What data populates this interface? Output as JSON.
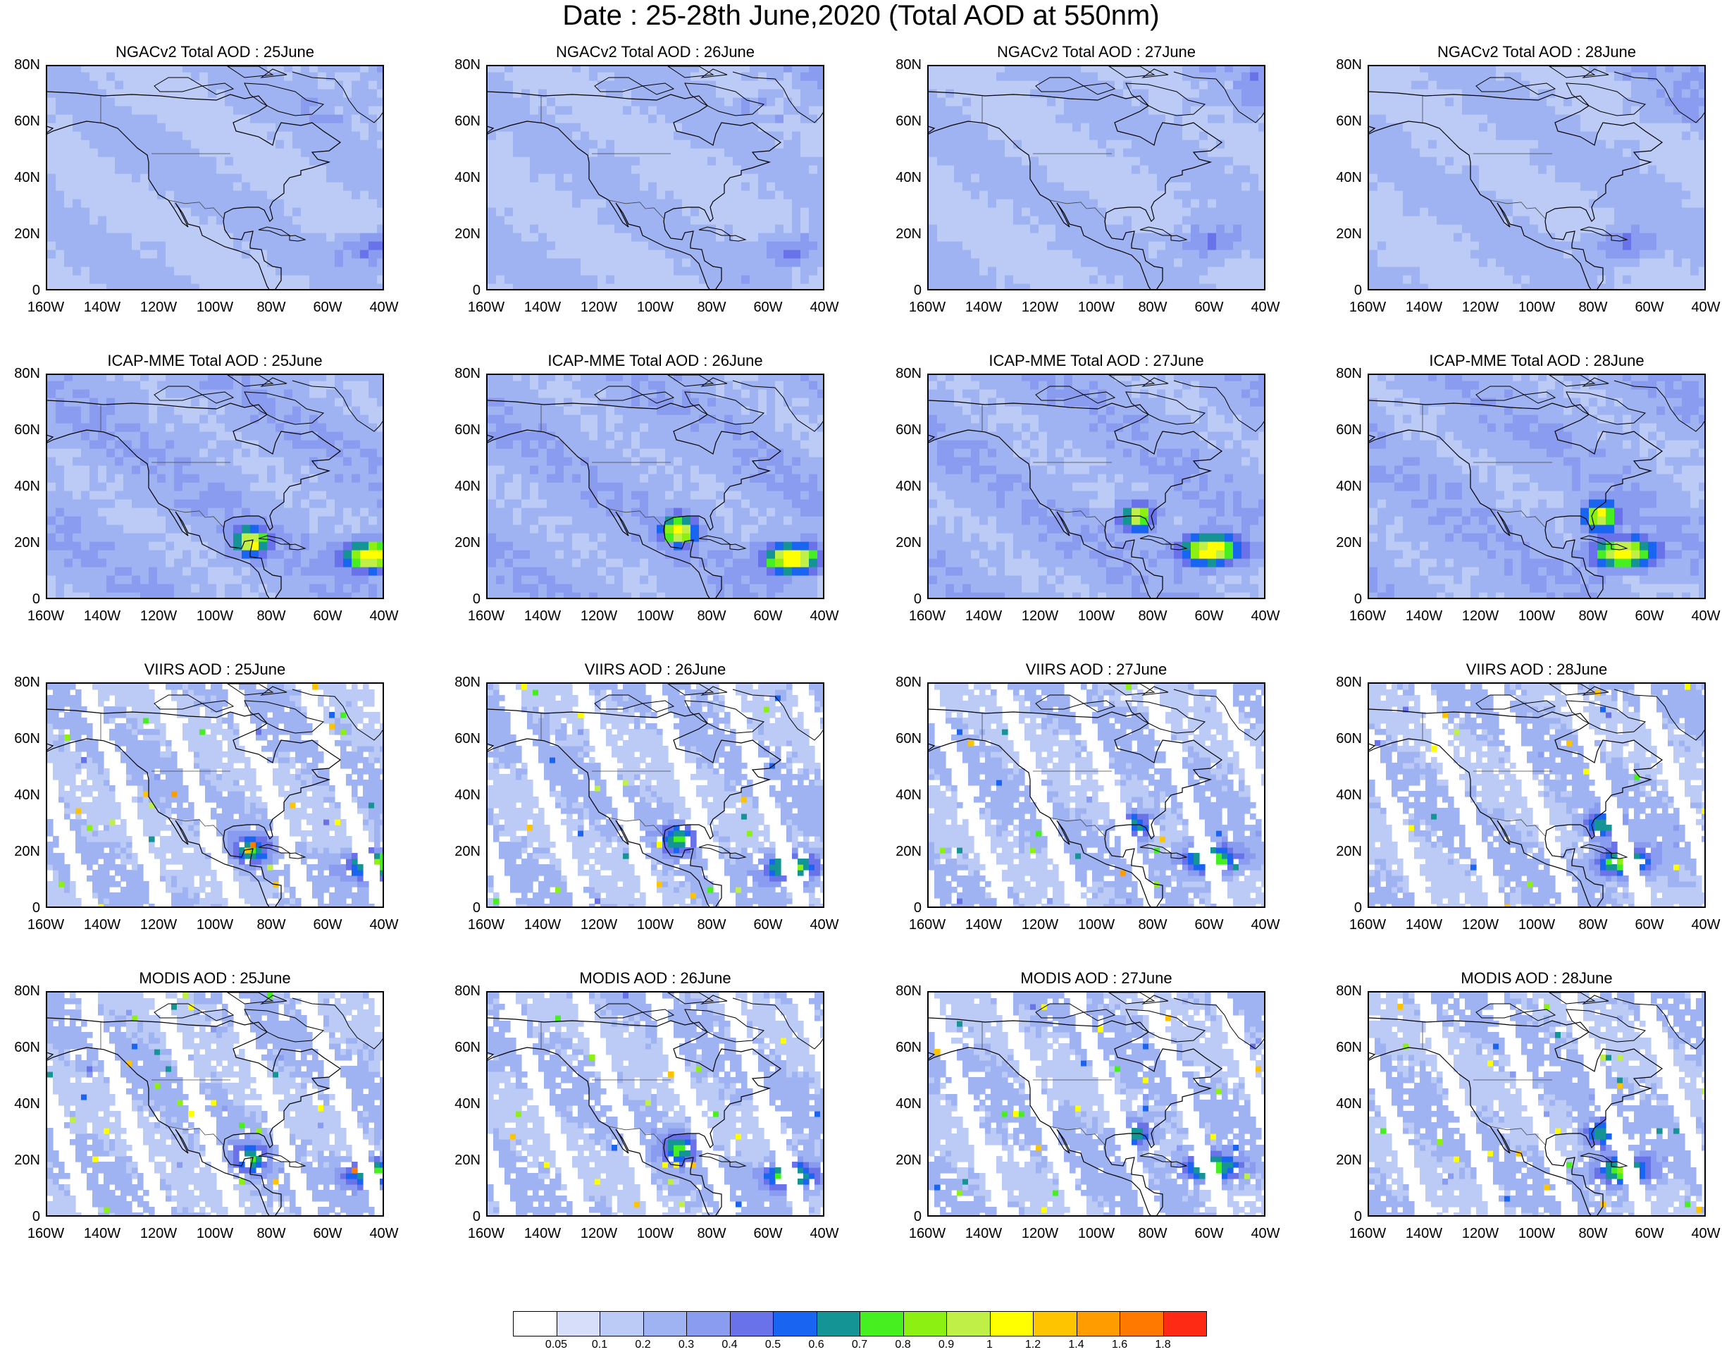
{
  "title": "Date : 25-28th June,2020 (Total AOD at 550nm)",
  "axes": {
    "y_ticks": [
      "80N",
      "60N",
      "40N",
      "20N",
      "0"
    ],
    "x_ticks": [
      "160W",
      "140W",
      "120W",
      "100W",
      "80W",
      "60W",
      "40W"
    ],
    "lat_range": [
      0,
      80
    ],
    "lon_range": [
      -160,
      -40
    ]
  },
  "colorbar": {
    "labels": [
      "0.05",
      "0.1",
      "0.2",
      "0.3",
      "0.4",
      "0.5",
      "0.6",
      "0.7",
      "0.8",
      "0.9",
      "1",
      "1.2",
      "1.4",
      "1.6",
      "1.8"
    ],
    "colors": [
      "#ffffff",
      "#d6def9",
      "#bccaf6",
      "#9fb2f2",
      "#8a9cf0",
      "#6a72ea",
      "#1a64f2",
      "#149494",
      "#46f020",
      "#8cf012",
      "#c0f048",
      "#ffff00",
      "#ffc400",
      "#ff9c00",
      "#ff7800",
      "#ff2a14"
    ]
  },
  "panels": [
    {
      "title": "NGACv2 Total AOD : 25June",
      "product": "model",
      "day": 25
    },
    {
      "title": "NGACv2 Total AOD : 26June",
      "product": "model",
      "day": 26
    },
    {
      "title": "NGACv2 Total AOD : 27June",
      "product": "model",
      "day": 27
    },
    {
      "title": "NGACv2 Total AOD : 28June",
      "product": "model",
      "day": 28
    },
    {
      "title": "ICAP-MME Total AOD : 25June",
      "product": "ensemble",
      "day": 25
    },
    {
      "title": "ICAP-MME Total AOD : 26June",
      "product": "ensemble",
      "day": 26
    },
    {
      "title": "ICAP-MME Total AOD : 27June",
      "product": "ensemble",
      "day": 27
    },
    {
      "title": "ICAP-MME Total AOD : 28June",
      "product": "ensemble",
      "day": 28
    },
    {
      "title": "VIIRS AOD : 25June",
      "product": "satellite",
      "day": 25
    },
    {
      "title": "VIIRS AOD : 26June",
      "product": "satellite",
      "day": 26
    },
    {
      "title": "VIIRS AOD : 27June",
      "product": "satellite",
      "day": 27
    },
    {
      "title": "VIIRS AOD : 28June",
      "product": "satellite",
      "day": 28
    },
    {
      "title": "MODIS AOD : 25June",
      "product": "satellite",
      "day": 25
    },
    {
      "title": "MODIS AOD : 26June",
      "product": "satellite",
      "day": 26
    },
    {
      "title": "MODIS AOD : 27June",
      "product": "satellite",
      "day": 27
    },
    {
      "title": "MODIS AOD : 28June",
      "product": "satellite",
      "day": 28
    }
  ],
  "dust_plume_centers": {
    "25": {
      "atlantic": [
        -44,
        16
      ],
      "gulf": [
        -88,
        21
      ]
    },
    "26": {
      "atlantic": [
        -52,
        15
      ],
      "gulf": [
        -92,
        25
      ]
    },
    "27": {
      "atlantic": [
        -60,
        18
      ],
      "gulf": [
        -86,
        30
      ]
    },
    "28": {
      "atlantic": [
        -70,
        17
      ],
      "gulf": [
        -78,
        30
      ]
    }
  }
}
